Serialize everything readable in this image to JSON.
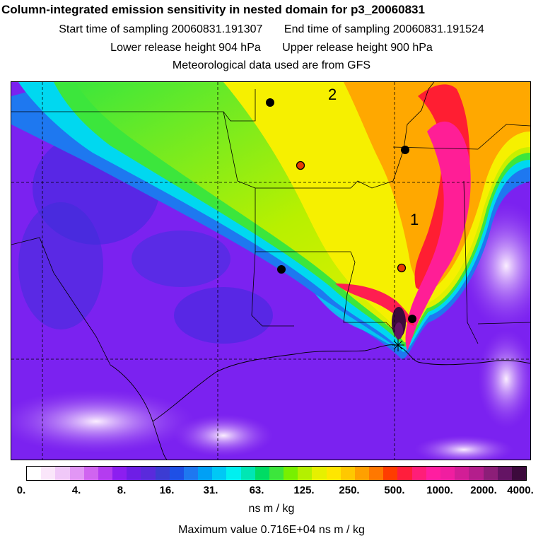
{
  "title": "Column-integrated emission sensitivity in nested domain for p3_20060831",
  "sampling": {
    "start": "Start time of sampling 20060831.191307",
    "end": "End time of sampling 20060831.191524"
  },
  "release": {
    "lower": "Lower release height  904 hPa",
    "upper": "Upper release height  900 hPa"
  },
  "met_note": "Meteorological data used are from GFS",
  "map": {
    "region_labels": [
      "1",
      "2"
    ],
    "plume_colors": {
      "background": "#7b22f0",
      "low": "#2f2fd8",
      "cyan": "#00d8f0",
      "green": "#3ce63c",
      "yellow_green": "#b8f000",
      "yellow": "#f6f000",
      "orange": "#ffa800",
      "red": "#ff1e32",
      "magenta": "#ff1e96",
      "max": "#3c0a3c",
      "white_low": "#f2d8ff"
    },
    "marker_colors": {
      "black": "#000000",
      "red": "#e63c00"
    }
  },
  "colorbar": {
    "colors": [
      "#ffffff",
      "#fae6fa",
      "#f0c8f8",
      "#e296f5",
      "#d064f0",
      "#b43cf0",
      "#8c1ef0",
      "#6e1ee6",
      "#5a2adc",
      "#3c3cd2",
      "#1e50e6",
      "#1e78f0",
      "#00a0f5",
      "#00c8f5",
      "#00f0f0",
      "#00e6b4",
      "#00dc64",
      "#3ce63c",
      "#78f000",
      "#b4f000",
      "#e6f000",
      "#ffe600",
      "#ffc800",
      "#ffa000",
      "#ff7800",
      "#ff3c00",
      "#ff1e3c",
      "#ff1e78",
      "#ff1ea0",
      "#f01ea0",
      "#d21e96",
      "#b41e8c",
      "#8c1e78",
      "#641464",
      "#3c0a3c"
    ],
    "ticks": [
      "0.",
      "4.",
      "8.",
      "16.",
      "31.",
      "63.",
      "125.",
      "250.",
      "500.",
      "1000.",
      "2000.",
      "4000."
    ]
  },
  "units": "ns m / kg",
  "max_value": "Maximum value  0.716E+04 ns m / kg"
}
